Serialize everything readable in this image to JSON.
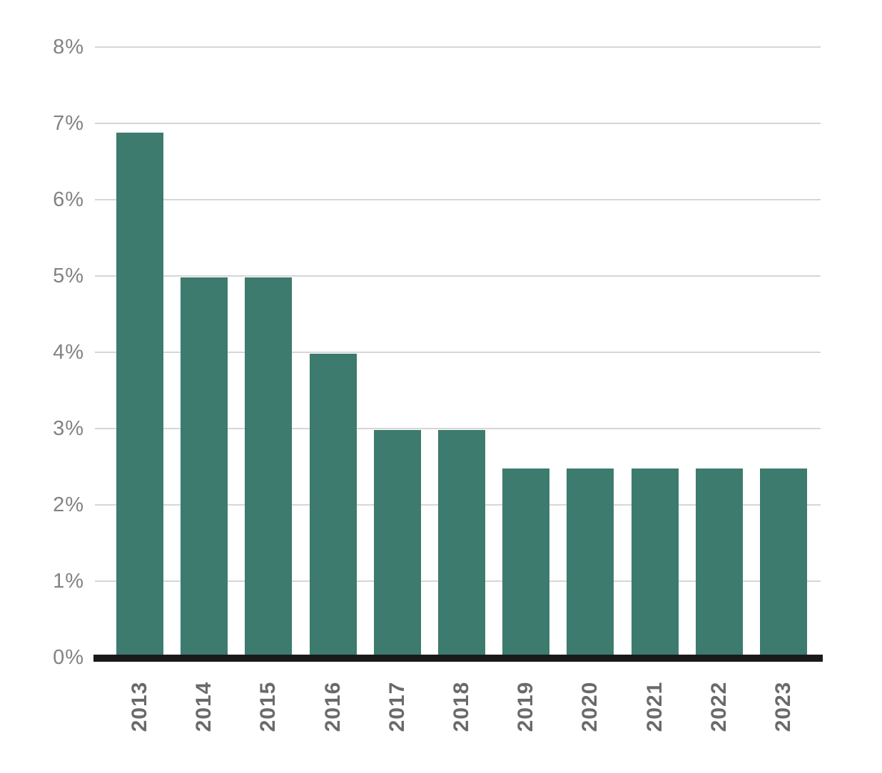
{
  "chart_data": {
    "type": "bar",
    "title": "",
    "xlabel": "",
    "ylabel": "",
    "categories": [
      "2013",
      "2014",
      "2015",
      "2016",
      "2017",
      "2018",
      "2019",
      "2020",
      "2021",
      "2022",
      "2023"
    ],
    "values": [
      6.9,
      5.0,
      5.0,
      4.0,
      3.0,
      3.0,
      2.5,
      2.5,
      2.5,
      2.5,
      2.5
    ],
    "ylim": [
      0,
      8
    ],
    "ytick_step": 1,
    "ytick_suffix": "%",
    "grid": true,
    "legend": false,
    "colors": {
      "bar": "#3c7b6e",
      "gridline": "#d6d6d6",
      "axis_line": "#1a1a1a",
      "y_tick_label": "#828282",
      "x_tick_label": "#6a6a6a",
      "background": "#ffffff"
    }
  }
}
